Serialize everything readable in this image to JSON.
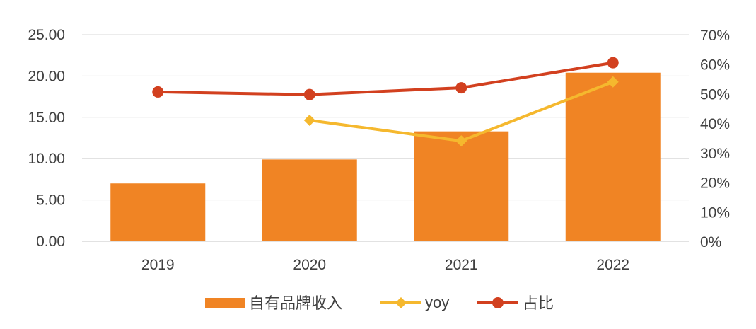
{
  "chart_data": {
    "type": "bar",
    "categories": [
      "2019",
      "2020",
      "2021",
      "2022"
    ],
    "series": [
      {
        "name": "自有品牌收入",
        "type": "bar",
        "axis": "left",
        "color": "#F08424",
        "values": [
          7.0,
          9.9,
          13.3,
          20.4
        ]
      },
      {
        "name": "yoy",
        "type": "line",
        "axis": "right",
        "marker": "diamond",
        "color": "#F5B82E",
        "values": [
          null,
          0.41,
          0.34,
          0.54
        ]
      },
      {
        "name": "占比",
        "type": "line",
        "axis": "right",
        "marker": "circle",
        "color": "#D2401F",
        "values": [
          0.506,
          0.497,
          0.52,
          0.605
        ]
      }
    ],
    "y_left": {
      "min": 0,
      "max": 25,
      "ticks": [
        0,
        5,
        10,
        15,
        20,
        25
      ],
      "tick_labels": [
        "0.00",
        "5.00",
        "10.00",
        "15.00",
        "20.00",
        "25.00"
      ]
    },
    "y_right": {
      "min": 0,
      "max": 0.7,
      "ticks": [
        0,
        0.1,
        0.2,
        0.3,
        0.4,
        0.5,
        0.6,
        0.7
      ],
      "tick_labels": [
        "0%",
        "10%",
        "20%",
        "30%",
        "40%",
        "50%",
        "60%",
        "70%"
      ]
    },
    "grid": true,
    "legend": "bottom",
    "title": "",
    "xlabel": "",
    "ylabel": ""
  }
}
